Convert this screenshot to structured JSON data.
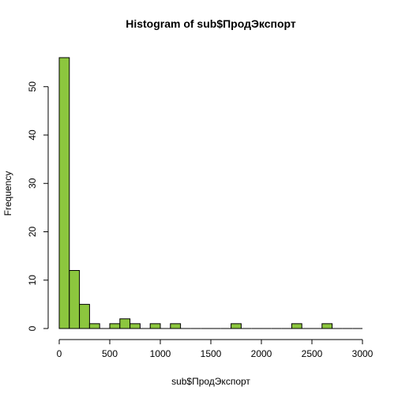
{
  "chart_data": {
    "type": "bar",
    "title": "Histogram of sub$ПродЭкспорт",
    "xlabel": "sub$ПродЭкспорт",
    "ylabel": "Frequency",
    "bin_width": 100,
    "bin_starts": [
      0,
      100,
      200,
      300,
      400,
      500,
      600,
      700,
      800,
      900,
      1000,
      1100,
      1200,
      1300,
      1400,
      1500,
      1600,
      1700,
      1800,
      1900,
      2000,
      2100,
      2200,
      2300,
      2400,
      2500,
      2600,
      2700,
      2800,
      2900
    ],
    "values": [
      56,
      12,
      5,
      1,
      0,
      1,
      2,
      1,
      0,
      1,
      0,
      1,
      0,
      0,
      0,
      0,
      0,
      1,
      0,
      0,
      0,
      0,
      0,
      1,
      0,
      0,
      1,
      0,
      0,
      0
    ],
    "xlim": [
      0,
      3000
    ],
    "ylim": [
      0,
      56
    ],
    "x_ticks": [
      0,
      500,
      1000,
      1500,
      2000,
      2500,
      3000
    ],
    "x_tick_labels": [
      "0",
      "500",
      "1000",
      "1500",
      "2000",
      "2500",
      "3000"
    ],
    "y_ticks": [
      0,
      10,
      20,
      30,
      40,
      50
    ],
    "y_tick_labels": [
      "0",
      "10",
      "20",
      "30",
      "40",
      "50"
    ],
    "bar_color": "#8cc63e",
    "grid": false
  }
}
